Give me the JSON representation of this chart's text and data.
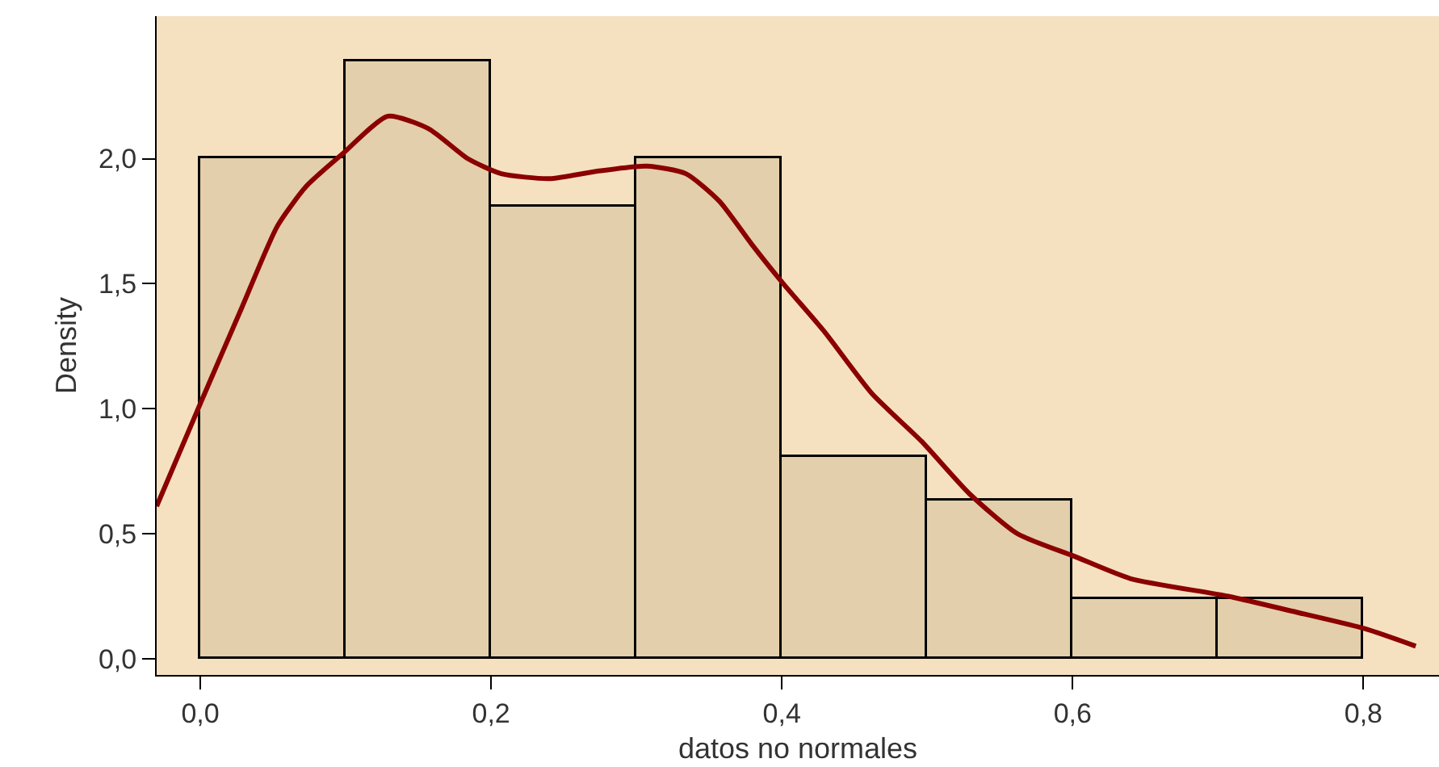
{
  "chart_data": {
    "type": "histogram",
    "xlabel": "datos no normales",
    "ylabel": "Density",
    "bins": [
      0.0,
      0.1,
      0.2,
      0.3,
      0.4,
      0.5,
      0.6,
      0.7,
      0.8
    ],
    "values": [
      2.0,
      2.39,
      1.81,
      2.0,
      0.81,
      0.63,
      0.24,
      0.24
    ],
    "color": "#e3cfab",
    "series": [
      {
        "type": "line",
        "color": "#8b0000",
        "x": [
          -0.03,
          0.0,
          0.029,
          0.053,
          0.073,
          0.098,
          0.129,
          0.157,
          0.184,
          0.207,
          0.24,
          0.273,
          0.307,
          0.334,
          0.357,
          0.379,
          0.401,
          0.429,
          0.462,
          0.496,
          0.529,
          0.562,
          0.601,
          0.64,
          0.707,
          0.751,
          0.801,
          0.836
        ],
        "values": [
          0.61,
          1.02,
          1.41,
          1.73,
          1.89,
          2.02,
          2.17,
          2.12,
          2.0,
          1.94,
          1.92,
          1.95,
          1.97,
          1.94,
          1.83,
          1.66,
          1.5,
          1.31,
          1.06,
          0.87,
          0.66,
          0.5,
          0.41,
          0.32,
          0.25,
          0.19,
          0.12,
          0.05
        ]
      }
    ],
    "xlim": [
      -0.03,
      0.852
    ],
    "ylim": [
      -0.065,
      2.57
    ],
    "xticks": [
      {
        "value": 0.0,
        "label": "0,0"
      },
      {
        "value": 0.2,
        "label": "0,2"
      },
      {
        "value": 0.4,
        "label": "0,4"
      },
      {
        "value": 0.6,
        "label": "0,6"
      },
      {
        "value": 0.8,
        "label": "0,8"
      }
    ],
    "yticks": [
      {
        "value": 0.0,
        "label": "0,0"
      },
      {
        "value": 0.5,
        "label": "0,5"
      },
      {
        "value": 1.0,
        "label": "1,0"
      },
      {
        "value": 1.5,
        "label": "1,5"
      },
      {
        "value": 2.0,
        "label": "2,0"
      }
    ],
    "grid": false
  }
}
